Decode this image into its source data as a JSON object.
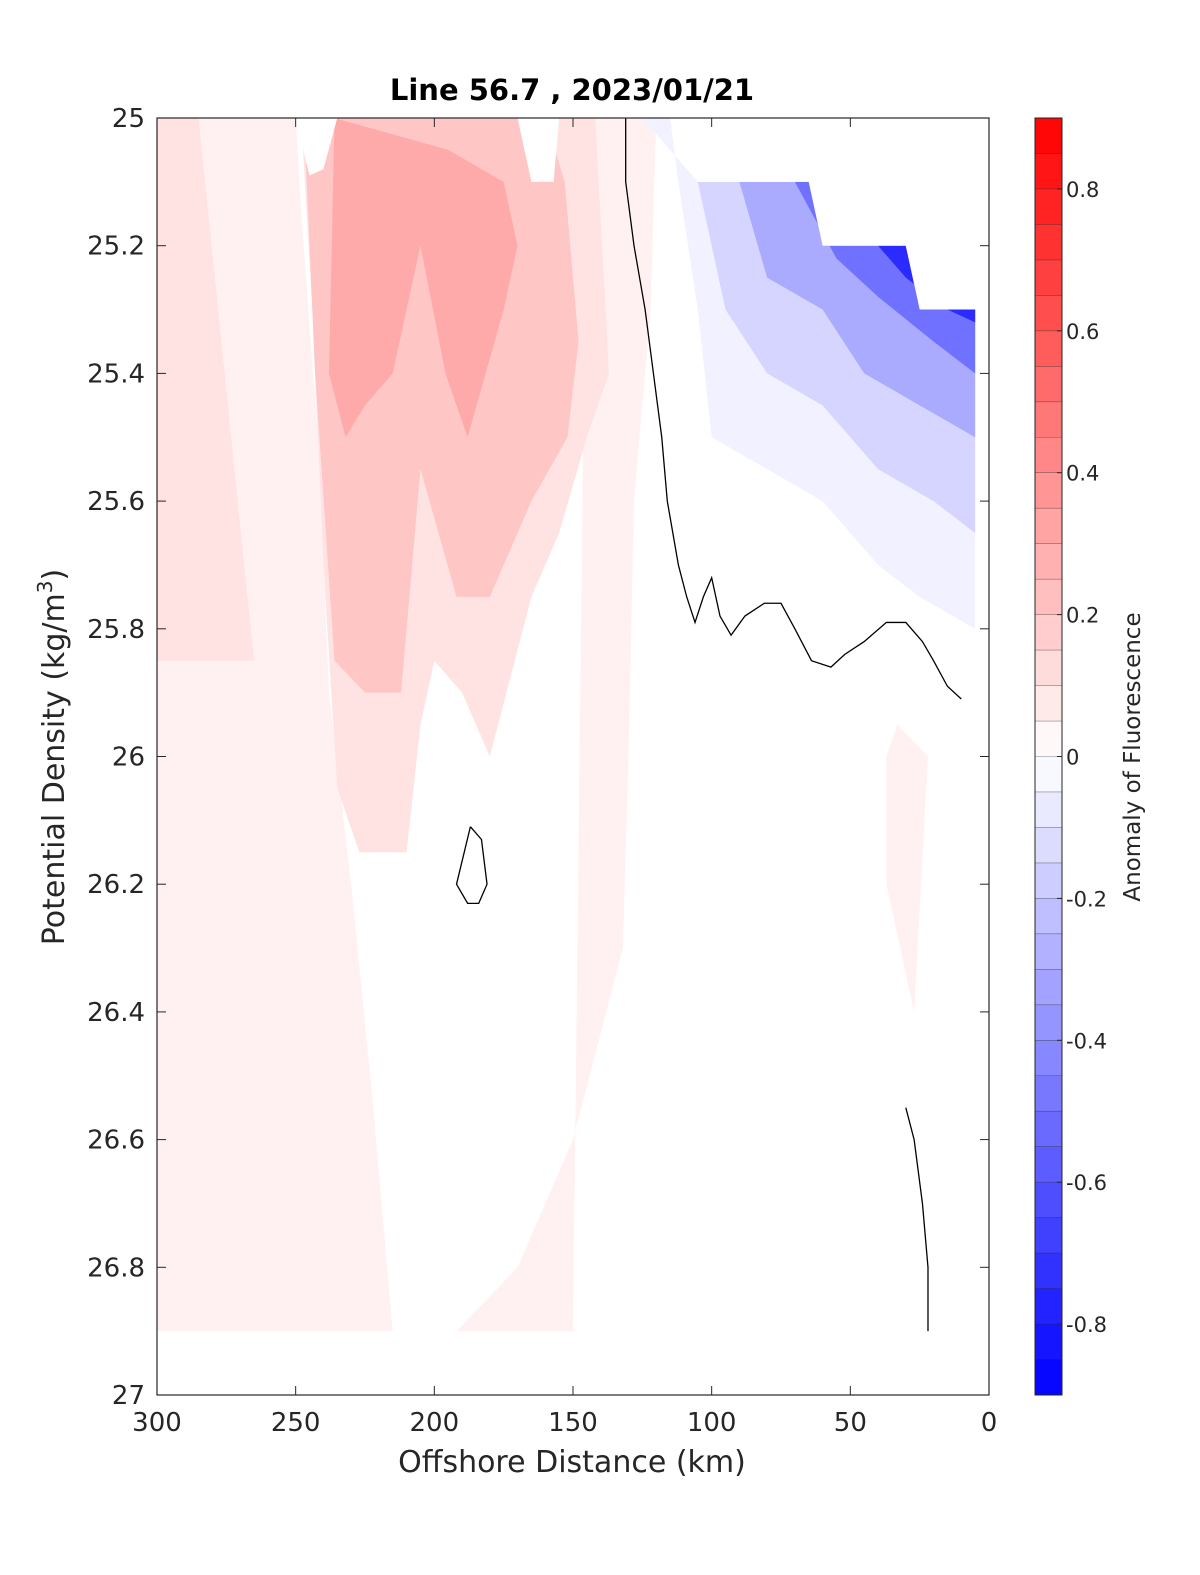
{
  "chart_data": {
    "type": "contour",
    "title": "Line 56.7 , 2023/01/21",
    "xlabel": "Offshore Distance (km)",
    "ylabel": "Potential Density (kg/m3)",
    "ylabel_base": "Potential Density (kg/m",
    "ylabel_sup": "3",
    "ylabel_close": ")",
    "xlim": [
      0,
      300
    ],
    "x_reversed": true,
    "ylim": [
      25,
      27
    ],
    "y_reversed": true,
    "xticks": [
      300,
      250,
      200,
      150,
      100,
      50,
      0
    ],
    "xtick_labels": [
      "300",
      "250",
      "200",
      "150",
      "100",
      "50",
      "0"
    ],
    "yticks": [
      25,
      25.2,
      25.4,
      25.6,
      25.8,
      26,
      26.2,
      26.4,
      26.6,
      26.8,
      27
    ],
    "ytick_labels": [
      "25",
      "25.2",
      "25.4",
      "25.6",
      "25.8",
      "26",
      "26.2",
      "26.4",
      "26.6",
      "26.8",
      "27"
    ],
    "colorbar": {
      "label": "Anomaly of Fluorescence",
      "range": [
        -0.9,
        0.9
      ],
      "ticks": [
        0.8,
        0.6,
        0.4,
        0.2,
        0,
        -0.2,
        -0.4,
        -0.6,
        -0.8
      ],
      "tick_labels": [
        "0.8",
        "0.6",
        "0.4",
        "0.2",
        "0",
        "-0.2",
        "-0.4",
        "-0.6",
        "-0.8"
      ],
      "levels": 36,
      "colormap": "blue-white-red",
      "color_neg": "#0000ff",
      "color_zero": "#ffffff",
      "color_pos": "#ff0000"
    },
    "zero_contour_line_color": "#000000",
    "regions": [
      {
        "label": "positive",
        "value": 0.05,
        "polygon": [
          [
            283,
            25.0
          ],
          [
            250,
            25.0
          ],
          [
            248,
            25.15
          ],
          [
            242,
            25.5
          ],
          [
            238,
            25.9
          ],
          [
            230,
            26.2
          ],
          [
            222,
            26.55
          ],
          [
            215,
            26.9
          ],
          [
            192,
            26.9
          ],
          [
            170,
            26.8
          ],
          [
            150,
            26.6
          ],
          [
            132,
            26.3
          ],
          [
            130,
            26.0
          ],
          [
            128,
            25.6
          ],
          [
            122,
            25.3
          ],
          [
            120,
            25.0
          ],
          [
            145,
            25.0
          ],
          [
            150,
            26.9
          ],
          [
            200,
            26.9
          ],
          [
            300,
            26.9
          ],
          [
            300,
            25.0
          ]
        ]
      },
      {
        "label": "positive",
        "value": 0.1,
        "polygon": [
          [
            285,
            25.0
          ],
          [
            248,
            25.0
          ],
          [
            244,
            25.3
          ],
          [
            240,
            25.7
          ],
          [
            235,
            26.05
          ],
          [
            227,
            26.15
          ],
          [
            210,
            26.15
          ],
          [
            205,
            25.95
          ],
          [
            200,
            25.85
          ],
          [
            190,
            25.9
          ],
          [
            180,
            26.0
          ],
          [
            165,
            25.75
          ],
          [
            155,
            25.65
          ],
          [
            145,
            25.5
          ],
          [
            137,
            25.4
          ],
          [
            142,
            25.0
          ],
          [
            300,
            25.0
          ],
          [
            300,
            25.85
          ],
          [
            265,
            25.85
          ],
          [
            285,
            25.0
          ]
        ]
      },
      {
        "label": "positive",
        "value": 0.2,
        "polygon": [
          [
            247,
            25.0
          ],
          [
            243,
            25.4
          ],
          [
            236,
            25.85
          ],
          [
            225,
            25.9
          ],
          [
            212,
            25.9
          ],
          [
            205,
            25.55
          ],
          [
            192,
            25.75
          ],
          [
            180,
            25.75
          ],
          [
            165,
            25.6
          ],
          [
            152,
            25.5
          ],
          [
            148,
            25.35
          ],
          [
            153,
            25.1
          ],
          [
            160,
            25.0
          ]
        ]
      },
      {
        "label": "positive",
        "value": 0.3,
        "polygon": [
          [
            236,
            25.0
          ],
          [
            238,
            25.4
          ],
          [
            232,
            25.5
          ],
          [
            225,
            25.45
          ],
          [
            215,
            25.4
          ],
          [
            205,
            25.2
          ],
          [
            196,
            25.4
          ],
          [
            188,
            25.5
          ],
          [
            175,
            25.3
          ],
          [
            170,
            25.2
          ],
          [
            175,
            25.1
          ],
          [
            195,
            25.05
          ]
        ]
      },
      {
        "label": "positive",
        "value": 0.05,
        "polygon": [
          [
            33,
            25.95
          ],
          [
            22,
            26.0
          ],
          [
            27,
            26.4
          ],
          [
            37,
            26.2
          ],
          [
            37,
            26.0
          ]
        ]
      },
      {
        "label": "negative",
        "value": -0.05,
        "polygon": [
          [
            125,
            25.0
          ],
          [
            115,
            25.0
          ],
          [
            112,
            25.1
          ],
          [
            105,
            25.3
          ],
          [
            100,
            25.5
          ],
          [
            80,
            25.55
          ],
          [
            60,
            25.6
          ],
          [
            40,
            25.7
          ],
          [
            25,
            25.75
          ],
          [
            5,
            25.8
          ],
          [
            5,
            25.3
          ],
          [
            25,
            25.3
          ],
          [
            30,
            25.2
          ],
          [
            60,
            25.2
          ],
          [
            65,
            25.1
          ],
          [
            105,
            25.1
          ]
        ]
      },
      {
        "label": "negative",
        "value": -0.15,
        "polygon": [
          [
            105,
            25.1
          ],
          [
            95,
            25.3
          ],
          [
            80,
            25.4
          ],
          [
            60,
            25.45
          ],
          [
            40,
            25.55
          ],
          [
            20,
            25.6
          ],
          [
            5,
            25.65
          ],
          [
            5,
            25.3
          ],
          [
            25,
            25.3
          ],
          [
            30,
            25.2
          ],
          [
            60,
            25.2
          ],
          [
            65,
            25.1
          ]
        ]
      },
      {
        "label": "negative",
        "value": -0.3,
        "polygon": [
          [
            90,
            25.1
          ],
          [
            80,
            25.25
          ],
          [
            60,
            25.3
          ],
          [
            45,
            25.4
          ],
          [
            25,
            25.45
          ],
          [
            5,
            25.5
          ],
          [
            5,
            25.3
          ],
          [
            25,
            25.3
          ],
          [
            30,
            25.2
          ],
          [
            60,
            25.2
          ],
          [
            65,
            25.1
          ]
        ]
      },
      {
        "label": "negative",
        "value": -0.5,
        "polygon": [
          [
            70,
            25.1
          ],
          [
            55,
            25.22
          ],
          [
            40,
            25.28
          ],
          [
            20,
            25.35
          ],
          [
            5,
            25.4
          ],
          [
            5,
            25.3
          ],
          [
            25,
            25.3
          ],
          [
            30,
            25.2
          ],
          [
            60,
            25.2
          ],
          [
            65,
            25.1
          ]
        ]
      },
      {
        "label": "negative",
        "value": -0.75,
        "polygon": [
          [
            40,
            25.2
          ],
          [
            30,
            25.25
          ],
          [
            15,
            25.3
          ],
          [
            5,
            25.32
          ],
          [
            5,
            25.3
          ],
          [
            25,
            25.3
          ],
          [
            30,
            25.2
          ]
        ]
      }
    ],
    "masked_regions": [
      {
        "polygon": [
          [
            250,
            25.0
          ],
          [
            235,
            25.0
          ],
          [
            240,
            25.08
          ],
          [
            245,
            25.09
          ]
        ]
      },
      {
        "polygon": [
          [
            170,
            25.0
          ],
          [
            155,
            25.0
          ],
          [
            157,
            25.1
          ],
          [
            165,
            25.1
          ]
        ]
      },
      {
        "polygon": [
          [
            115,
            25.0
          ],
          [
            0,
            25.0
          ],
          [
            0,
            25.3
          ],
          [
            25,
            25.3
          ],
          [
            30,
            25.2
          ],
          [
            60,
            25.2
          ],
          [
            65,
            25.1
          ],
          [
            105,
            25.1
          ]
        ]
      },
      {
        "polygon": [
          [
            300,
            26.9
          ],
          [
            0,
            26.9
          ],
          [
            0,
            27.0
          ],
          [
            300,
            27.0
          ]
        ]
      }
    ],
    "zero_contours": [
      [
        [
          131,
          25.0
        ],
        [
          131,
          25.1
        ],
        [
          128,
          25.2
        ],
        [
          124,
          25.3
        ],
        [
          121,
          25.4
        ],
        [
          118,
          25.5
        ],
        [
          116,
          25.6
        ],
        [
          112,
          25.7
        ],
        [
          109,
          25.75
        ],
        [
          106,
          25.79
        ],
        [
          103,
          25.75
        ],
        [
          100,
          25.72
        ],
        [
          97,
          25.78
        ],
        [
          93,
          25.81
        ],
        [
          88,
          25.78
        ],
        [
          81,
          25.76
        ],
        [
          75,
          25.76
        ],
        [
          70,
          25.8
        ],
        [
          64,
          25.85
        ],
        [
          57,
          25.86
        ],
        [
          52,
          25.84
        ],
        [
          45,
          25.82
        ],
        [
          37,
          25.79
        ],
        [
          30,
          25.79
        ],
        [
          24,
          25.82
        ],
        [
          20,
          25.85
        ],
        [
          15,
          25.89
        ],
        [
          10,
          25.91
        ]
      ],
      [
        [
          187,
          26.11
        ],
        [
          183,
          26.13
        ],
        [
          181,
          26.2
        ],
        [
          184,
          26.23
        ],
        [
          188,
          26.23
        ],
        [
          192,
          26.2
        ],
        [
          187,
          26.11
        ]
      ],
      [
        [
          30,
          26.55
        ],
        [
          27,
          26.6
        ],
        [
          24,
          26.7
        ],
        [
          22,
          26.8
        ],
        [
          22,
          26.9
        ]
      ]
    ]
  }
}
